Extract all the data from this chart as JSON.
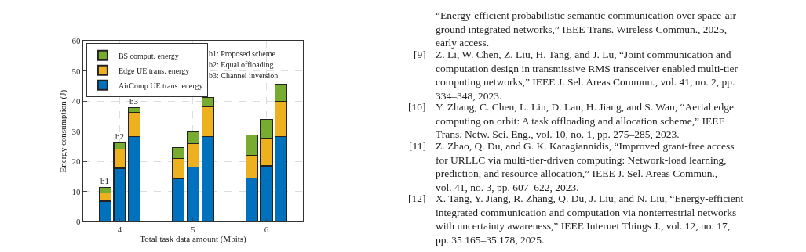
{
  "chart_data": {
    "type": "bar",
    "stacked": true,
    "xlabel": "Total task data amount (Mbits)",
    "ylabel": "Energy consumption (J)",
    "x": [
      3.8,
      4,
      4.2,
      4.8,
      5,
      5.2,
      5.8,
      6,
      6.2
    ],
    "xlim": [
      3.5,
      6.5
    ],
    "xticks": [
      4,
      5,
      6
    ],
    "ylim": [
      0,
      60
    ],
    "yticks": [
      0,
      10,
      20,
      30,
      40,
      50,
      60
    ],
    "grid": true,
    "legend": "top left",
    "series": [
      {
        "name": "AirComp UE trans. energy",
        "color": "#0072bd",
        "values": [
          6.8,
          17.7,
          28.3,
          14.1,
          18.0,
          28.3,
          14.5,
          18.5,
          28.3
        ]
      },
      {
        "name": "Edge UE trans. energy",
        "color": "#edb120",
        "values": [
          2.7,
          6.4,
          7.9,
          6.8,
          7.9,
          9.8,
          7.5,
          9.1,
          11.7
        ]
      },
      {
        "name": "BS comput. energy",
        "color": "#77ac30",
        "values": [
          1.9,
          2.2,
          1.7,
          3.6,
          4.0,
          3.1,
          6.8,
          6.4,
          5.5
        ]
      }
    ],
    "annotations": [
      {
        "text": "b1",
        "x": 3.8,
        "y": 11.4
      },
      {
        "text": "b2",
        "x": 4,
        "y": 26.3
      },
      {
        "text": "b3",
        "x": 4.2,
        "y": 37.9
      },
      "b1: Proposed scheme",
      "b2: Equal offloading",
      "b3: Channel inversion",
      "“Energy-efficient probabilistic semantic communication over space-air-\nground integrated networks,” IEEE Trans. Wireless Commun., 2025,\nearly access.",
      "[9] Z. Li, W. Chen, Z. Liu, H. Tang, and J. Lu, “Joint communication and\ncomputation design in transmissive RMS transceiver enabled multi-tier\ncomputing networks,” IEEE J. Sel. Areas Commun., vol. 41, no. 2, pp.\n334–348, 2023.",
      "[10] Y. Zhang, C. Chen, L. Liu, D. Lan, H. Jiang, and S. Wan, “Aerial edge\ncomputing on orbit: A task offloading and allocation scheme,” IEEE\nTrans. Netw. Sci. Eng., vol. 10, no. 1, pp. 275–285, 2023.",
      "[11] Z. Zhao, Q. Du, and G. K. Karagiannidis, “Improved grant-free access\nfor URLLC via multi-tier-driven computing: Network-load learning,\nprediction, and resource allocation,” IEEE J. Sel. Areas Commun.,\nvol. 41, no. 3, pp. 607–622, 2023.",
      "[12] X. Tang, Y. Jiang, R. Zhang, Q. Du, J. Liu, and N. Liu, “Energy-efficient\nintegrated communication and computation via nonterrestrial networks\nwith uncertainty awareness,” IEEE Internet Things J., vol. 12, no. 17,\npp. 35 165–35 178, 2025."
    ]
  }
}
